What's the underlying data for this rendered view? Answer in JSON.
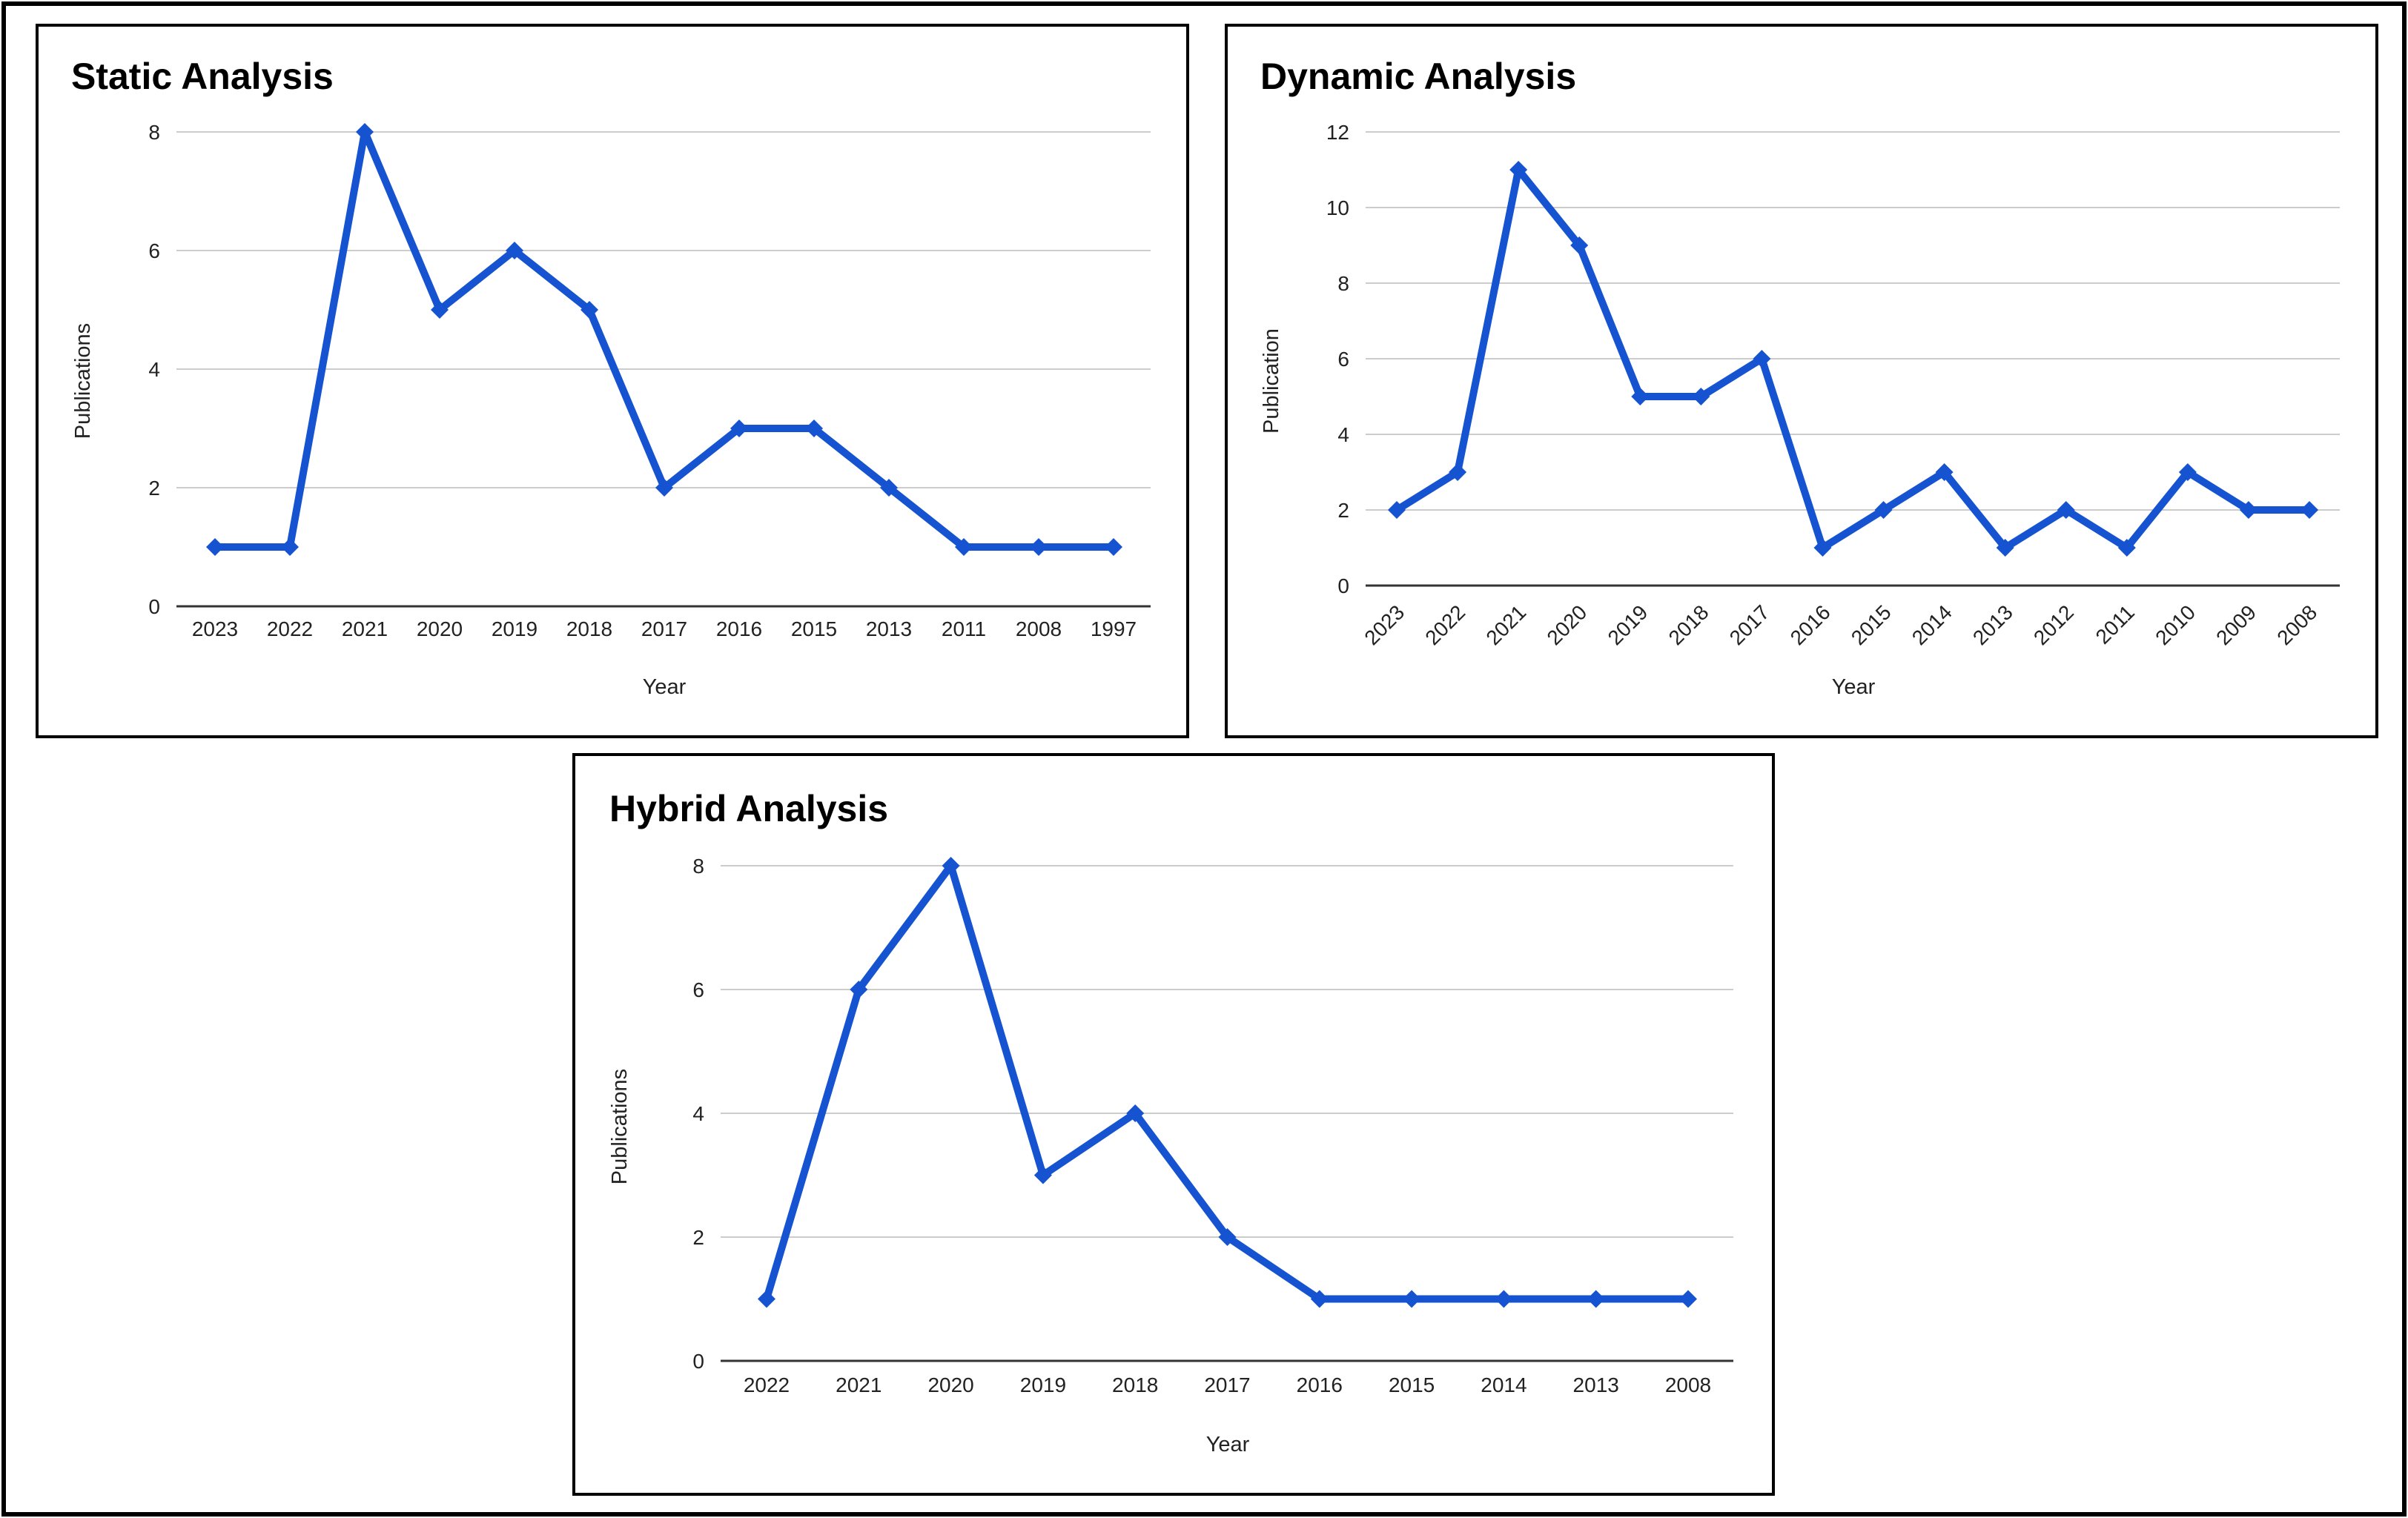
{
  "chart_data": [
    {
      "type": "line",
      "title": "Static Analysis",
      "xlabel": "Year",
      "ylabel": "Publications",
      "categories": [
        "2023",
        "2022",
        "2021",
        "2020",
        "2019",
        "2018",
        "2017",
        "2016",
        "2015",
        "2013",
        "2011",
        "2008",
        "1997"
      ],
      "series": [
        {
          "values": [
            1,
            1,
            8,
            5,
            6,
            5,
            2,
            3,
            3,
            2,
            1,
            1,
            1
          ]
        }
      ],
      "ylim": [
        0,
        8
      ],
      "yticks": [
        0,
        2,
        4,
        6,
        8
      ],
      "grid": true,
      "legend": "none",
      "color": "#1553d1",
      "marker": "diamond"
    },
    {
      "type": "line",
      "title": "Dynamic Analysis",
      "xlabel": "Year",
      "ylabel": "Publication",
      "categories": [
        "2023",
        "2022",
        "2021",
        "2020",
        "2019",
        "2018",
        "2017",
        "2016",
        "2015",
        "2014",
        "2013",
        "2012",
        "2011",
        "2010",
        "2009",
        "2008"
      ],
      "series": [
        {
          "values": [
            2,
            3,
            11,
            9,
            5,
            5,
            6,
            1,
            2,
            3,
            1,
            2,
            1,
            3,
            2,
            2
          ]
        }
      ],
      "ylim": [
        0,
        12
      ],
      "yticks": [
        0,
        2,
        4,
        6,
        8,
        10,
        12
      ],
      "xtick_rotation": "rotated",
      "grid": true,
      "legend": "none",
      "color": "#1553d1",
      "marker": "diamond"
    },
    {
      "type": "line",
      "title": "Hybrid Analysis",
      "xlabel": "Year",
      "ylabel": "Publications",
      "categories": [
        "2022",
        "2021",
        "2020",
        "2019",
        "2018",
        "2017",
        "2016",
        "2015",
        "2014",
        "2013",
        "2008"
      ],
      "series": [
        {
          "values": [
            1,
            6,
            8,
            3,
            4,
            2,
            1,
            1,
            1,
            1,
            1
          ]
        }
      ],
      "ylim": [
        0,
        8
      ],
      "yticks": [
        0,
        2,
        4,
        6,
        8
      ],
      "grid": true,
      "legend": "none",
      "color": "#1553d1",
      "marker": "diamond"
    }
  ]
}
